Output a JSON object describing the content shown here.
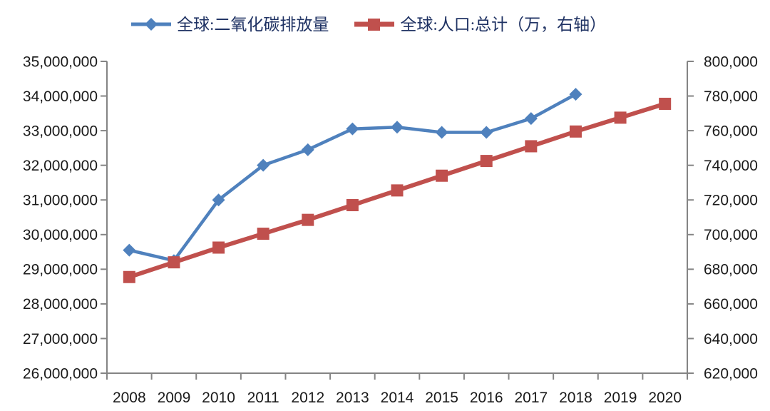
{
  "chart_data": {
    "type": "line",
    "title": "",
    "legend_position": "top",
    "grid": false,
    "categories": [
      "2008",
      "2009",
      "2010",
      "2011",
      "2012",
      "2013",
      "2014",
      "2015",
      "2016",
      "2017",
      "2018",
      "2019",
      "2020"
    ],
    "series": [
      {
        "name": "全球:二氧化碳排放量",
        "axis": "left",
        "marker": "diamond",
        "color": "#4f81bd",
        "values": [
          29550000,
          29250000,
          31000000,
          32000000,
          32450000,
          33050000,
          33100000,
          32950000,
          32950000,
          33350000,
          34050000
        ]
      },
      {
        "name": "全球:人口:总计（万，右轴）",
        "axis": "right",
        "marker": "square",
        "color": "#c0504d",
        "values": [
          675500,
          684000,
          692500,
          700500,
          708500,
          717000,
          725500,
          734000,
          742500,
          751000,
          759500,
          767500,
          775500
        ]
      }
    ],
    "left_axis": {
      "min": 26000000,
      "max": 35000000,
      "step": 1000000,
      "tick_labels": [
        "35,000,000",
        "34,000,000",
        "33,000,000",
        "32,000,000",
        "31,000,000",
        "30,000,000",
        "29,000,000",
        "28,000,000",
        "27,000,000",
        "26,000,000"
      ]
    },
    "right_axis": {
      "min": 620000,
      "max": 800000,
      "step": 20000,
      "tick_labels": [
        "800,000",
        "780,000",
        "760,000",
        "740,000",
        "720,000",
        "700,000",
        "680,000",
        "660,000",
        "640,000",
        "620,000"
      ]
    }
  },
  "styles": {
    "axis_color": "#848484",
    "tick_label_color": "#1a1a1a",
    "legend_text_color": "#1f3263",
    "background": "#ffffff"
  }
}
